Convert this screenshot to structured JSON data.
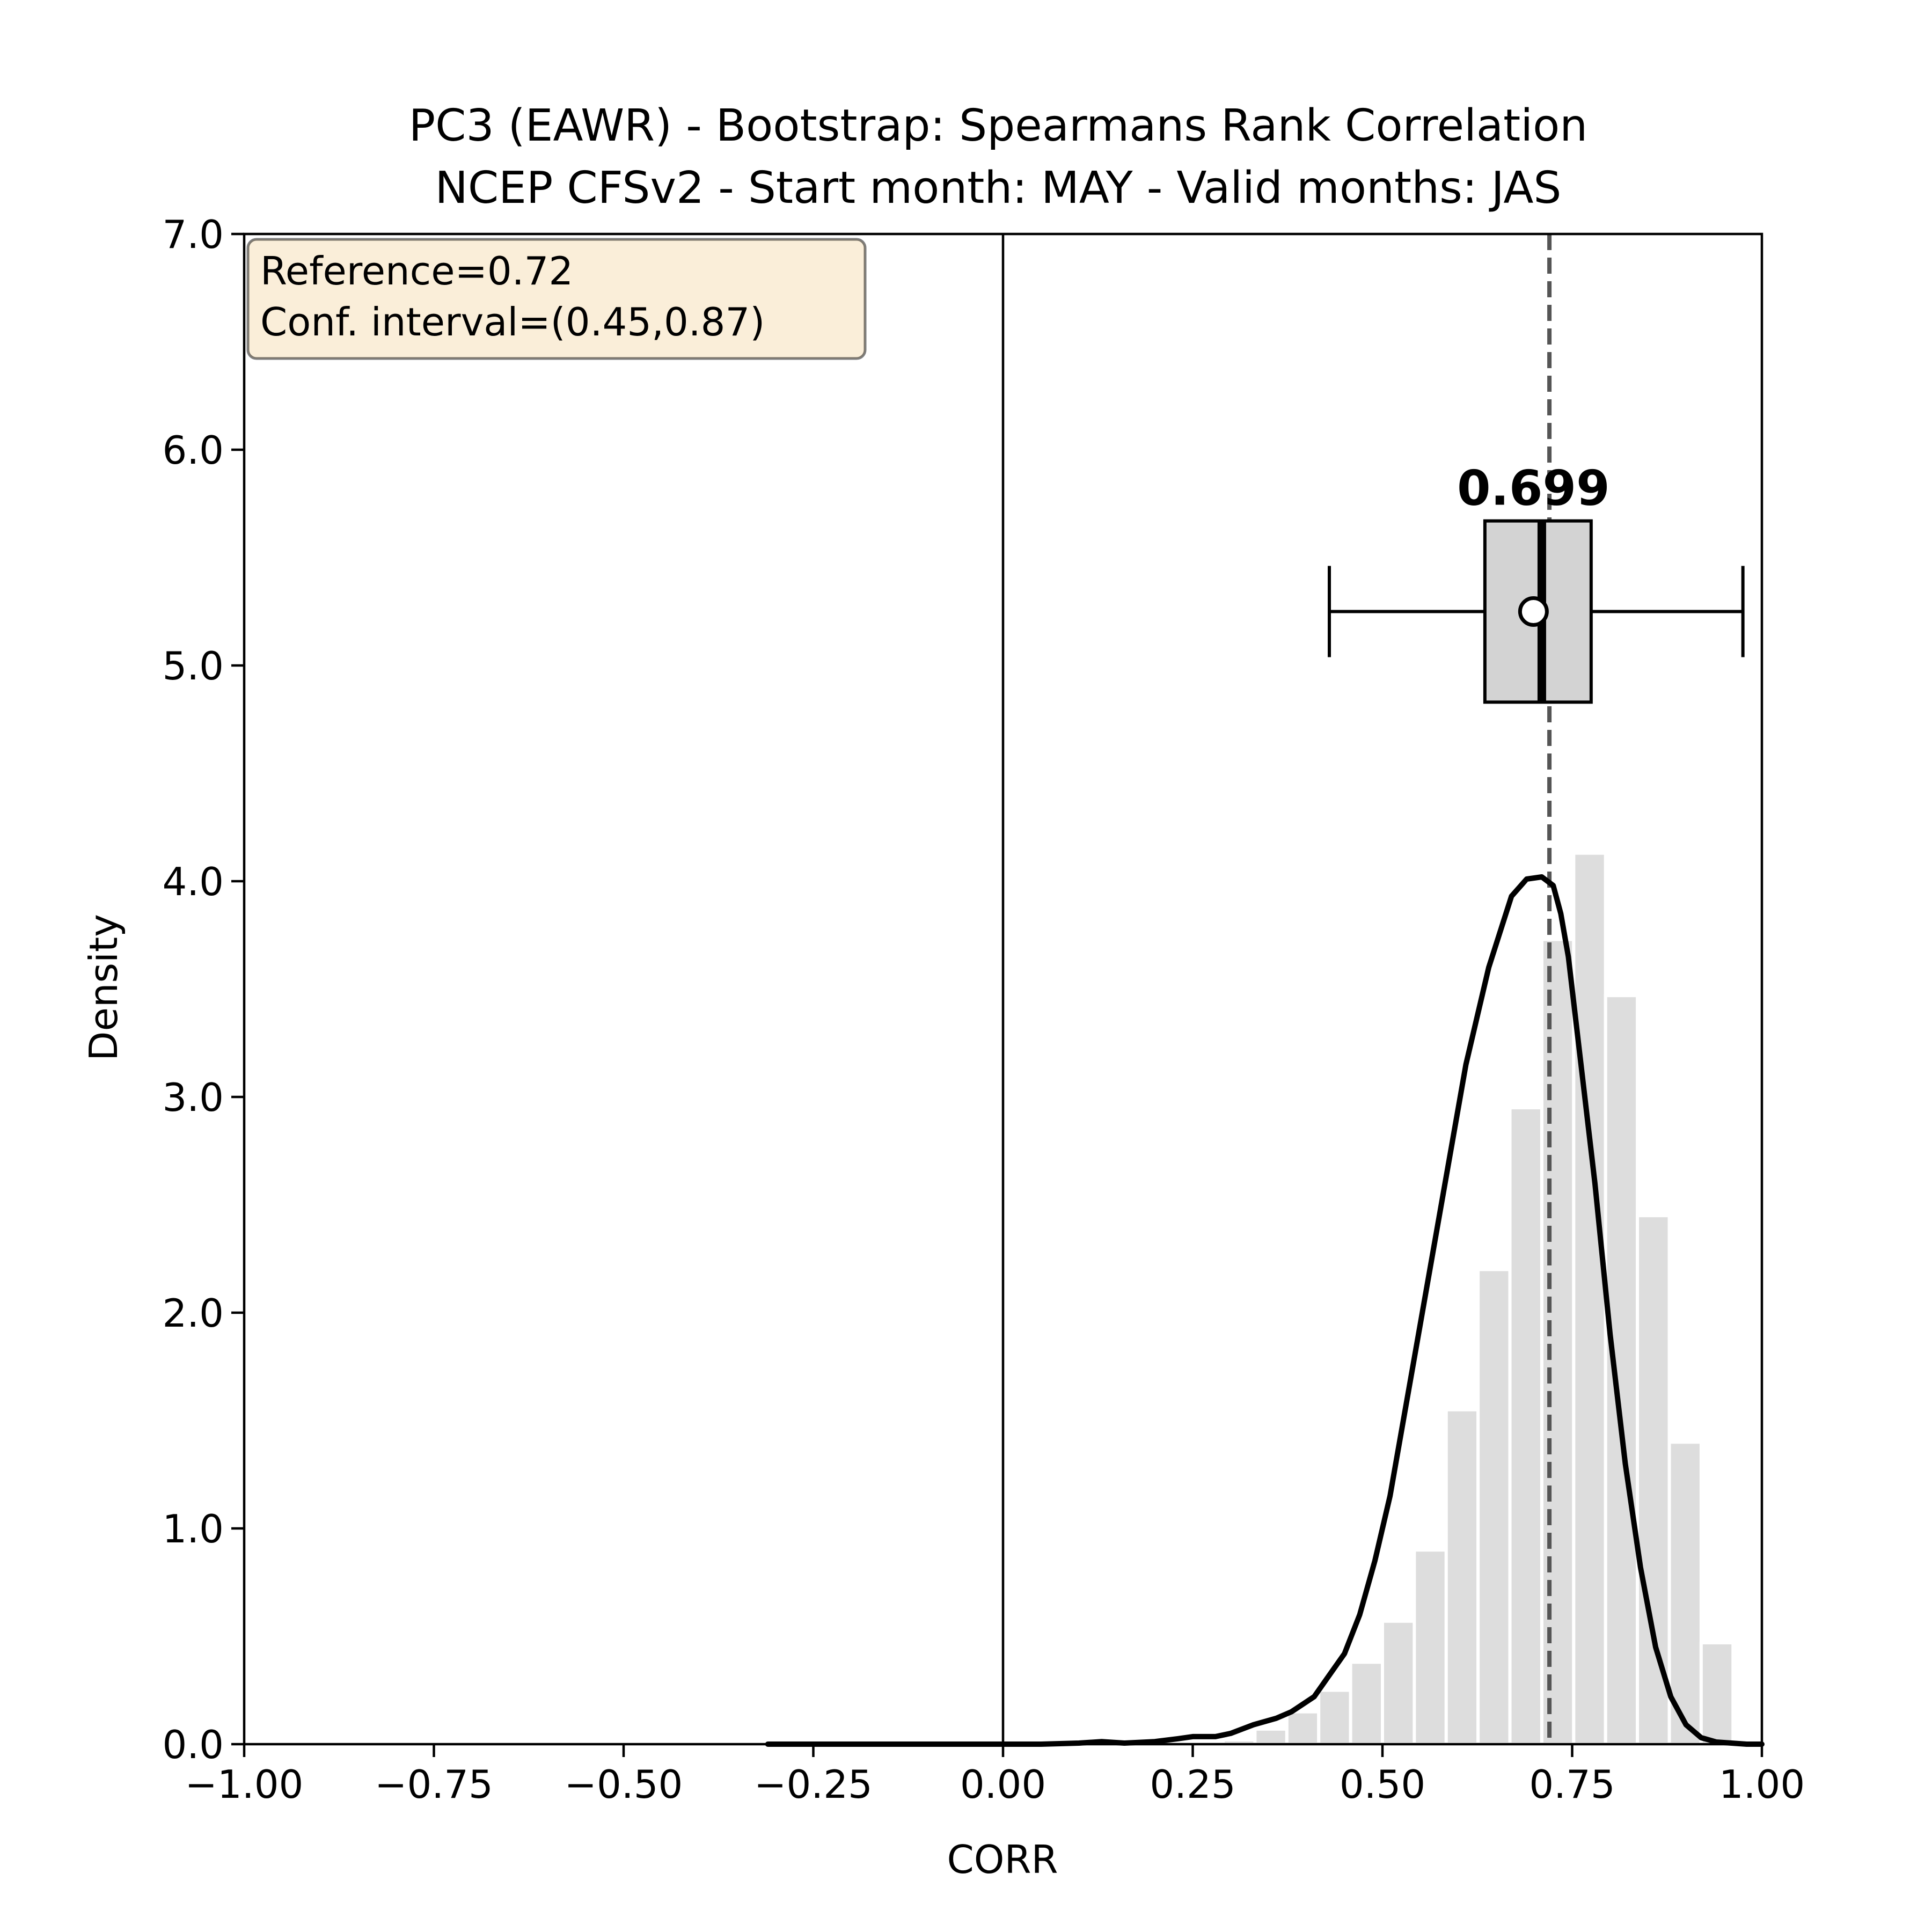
{
  "chart_data": {
    "type": "bar",
    "title": "PC3 (EAWR) - Bootstrap: Spearmans Rank Correlation",
    "subtitle": "NCEP CFSv2 - Start month: MAY - Valid months: JAS",
    "xlabel": "CORR",
    "ylabel": "Density",
    "xlim": [
      -1.0,
      1.0
    ],
    "ylim": [
      0.0,
      7.0
    ],
    "xticks": [
      "−1.00",
      "−0.75",
      "−0.50",
      "−0.25",
      "0.00",
      "0.25",
      "0.50",
      "0.75",
      "1.00"
    ],
    "xtick_values": [
      -1.0,
      -0.75,
      -0.5,
      -0.25,
      0.0,
      0.25,
      0.5,
      0.75,
      1.0
    ],
    "yticks": [
      "0.0",
      "1.0",
      "2.0",
      "3.0",
      "4.0",
      "5.0",
      "6.0",
      "7.0"
    ],
    "ytick_values": [
      0,
      1,
      2,
      3,
      4,
      5,
      6,
      7
    ],
    "grid": false,
    "histogram": {
      "bin_width": 0.042,
      "bin_starts": [
        0.29,
        0.332,
        0.374,
        0.416,
        0.458,
        0.5,
        0.542,
        0.584,
        0.626,
        0.668,
        0.71,
        0.752,
        0.794,
        0.836,
        0.878,
        0.92
      ],
      "values": [
        0.02,
        0.07,
        0.15,
        0.25,
        0.38,
        0.57,
        0.9,
        1.55,
        2.2,
        2.95,
        3.73,
        4.13,
        3.47,
        2.45,
        1.4,
        0.47
      ],
      "color": "#dddddd"
    },
    "kde": {
      "x": [
        -0.31,
        -0.2,
        -0.1,
        0.0,
        0.05,
        0.1,
        0.13,
        0.16,
        0.2,
        0.23,
        0.25,
        0.28,
        0.3,
        0.33,
        0.36,
        0.38,
        0.41,
        0.43,
        0.45,
        0.47,
        0.49,
        0.51,
        0.53,
        0.55,
        0.58,
        0.61,
        0.64,
        0.67,
        0.69,
        0.71,
        0.725,
        0.735,
        0.745,
        0.76,
        0.78,
        0.8,
        0.82,
        0.84,
        0.86,
        0.88,
        0.9,
        0.92,
        0.94,
        0.96,
        0.98,
        1.0
      ],
      "y": [
        0.0,
        0.0,
        0.0,
        0.0,
        0.0,
        0.005,
        0.012,
        0.005,
        0.012,
        0.025,
        0.035,
        0.035,
        0.05,
        0.09,
        0.12,
        0.15,
        0.22,
        0.32,
        0.42,
        0.6,
        0.85,
        1.15,
        1.55,
        1.95,
        2.55,
        3.15,
        3.6,
        3.93,
        4.01,
        4.02,
        3.98,
        3.85,
        3.65,
        3.2,
        2.6,
        1.9,
        1.3,
        0.82,
        0.45,
        0.22,
        0.09,
        0.03,
        0.01,
        0.005,
        0.0,
        0.0
      ],
      "color": "#000000"
    },
    "zero_line_x": 0.0,
    "reference": {
      "value": 0.72,
      "style": "dashed",
      "color": "#555555"
    },
    "boxplot": {
      "y_center": 5.25,
      "box_half_height": 0.42,
      "whisker_low": 0.43,
      "q1": 0.635,
      "median": 0.71,
      "mean": 0.699,
      "q3": 0.775,
      "whisker_high": 0.975,
      "label": "0.699",
      "fill": "#d3d3d3"
    },
    "info_box": {
      "line1": "Reference=0.72",
      "line2": "Conf. interval=(0.45,0.87)",
      "placement": "top-left",
      "fill": "#f5deb3"
    }
  }
}
